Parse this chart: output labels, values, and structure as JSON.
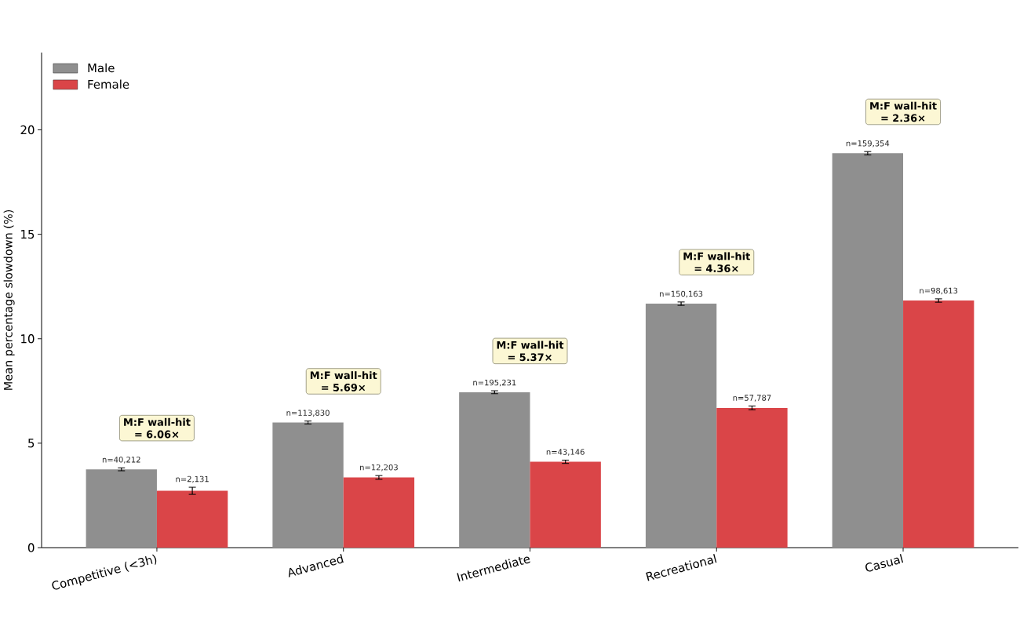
{
  "chart_data": {
    "type": "bar",
    "ylabel": "Mean percentage slowdown (%)",
    "categories": [
      "Competitive (<3h)",
      "Advanced",
      "Intermediate",
      "Recreational",
      "Casual"
    ],
    "series": [
      {
        "name": "Male",
        "color": "#8f8f8f",
        "values": [
          3.75,
          5.99,
          7.44,
          11.68,
          18.88
        ],
        "errors": [
          0.07,
          0.07,
          0.07,
          0.08,
          0.08
        ]
      },
      {
        "name": "Female",
        "color": "#da4548",
        "values": [
          2.72,
          3.36,
          4.11,
          6.69,
          11.83
        ],
        "errors": [
          0.17,
          0.09,
          0.08,
          0.09,
          0.08
        ]
      }
    ],
    "ylim": [
      0,
      23.7
    ],
    "yticks": [
      0,
      5,
      10,
      15,
      20
    ],
    "legend": "top left",
    "annotations": [
      "M:F wall-hit = 6.06×",
      "M:F wall-hit = 5.69×",
      "M:F wall-hit = 5.37×",
      "M:F wall-hit = 4.36×",
      "M:F wall-hit = 2.36×",
      {
        "text": "n=40,212",
        "x": "Competitive (<3h)",
        "y": 3.75
      },
      {
        "text": "n=2,131",
        "x": "Competitive (<3h)",
        "y": 2.72
      },
      {
        "text": "n=113,830",
        "x": "Advanced",
        "y": 5.99
      },
      {
        "text": "n=12,203",
        "x": "Advanced",
        "y": 3.36
      },
      {
        "text": "n=195,231",
        "x": "Intermediate",
        "y": 7.44
      },
      {
        "text": "n=43,146",
        "x": "Intermediate",
        "y": 4.11
      },
      {
        "text": "n=150,163",
        "x": "Recreational",
        "y": 11.68
      },
      {
        "text": "n=57,787",
        "x": "Recreational",
        "y": 6.69
      },
      {
        "text": "n=159,354",
        "x": "Casual",
        "y": 18.88
      },
      {
        "text": "n=98,613",
        "x": "Casual",
        "y": 11.83
      }
    ]
  }
}
